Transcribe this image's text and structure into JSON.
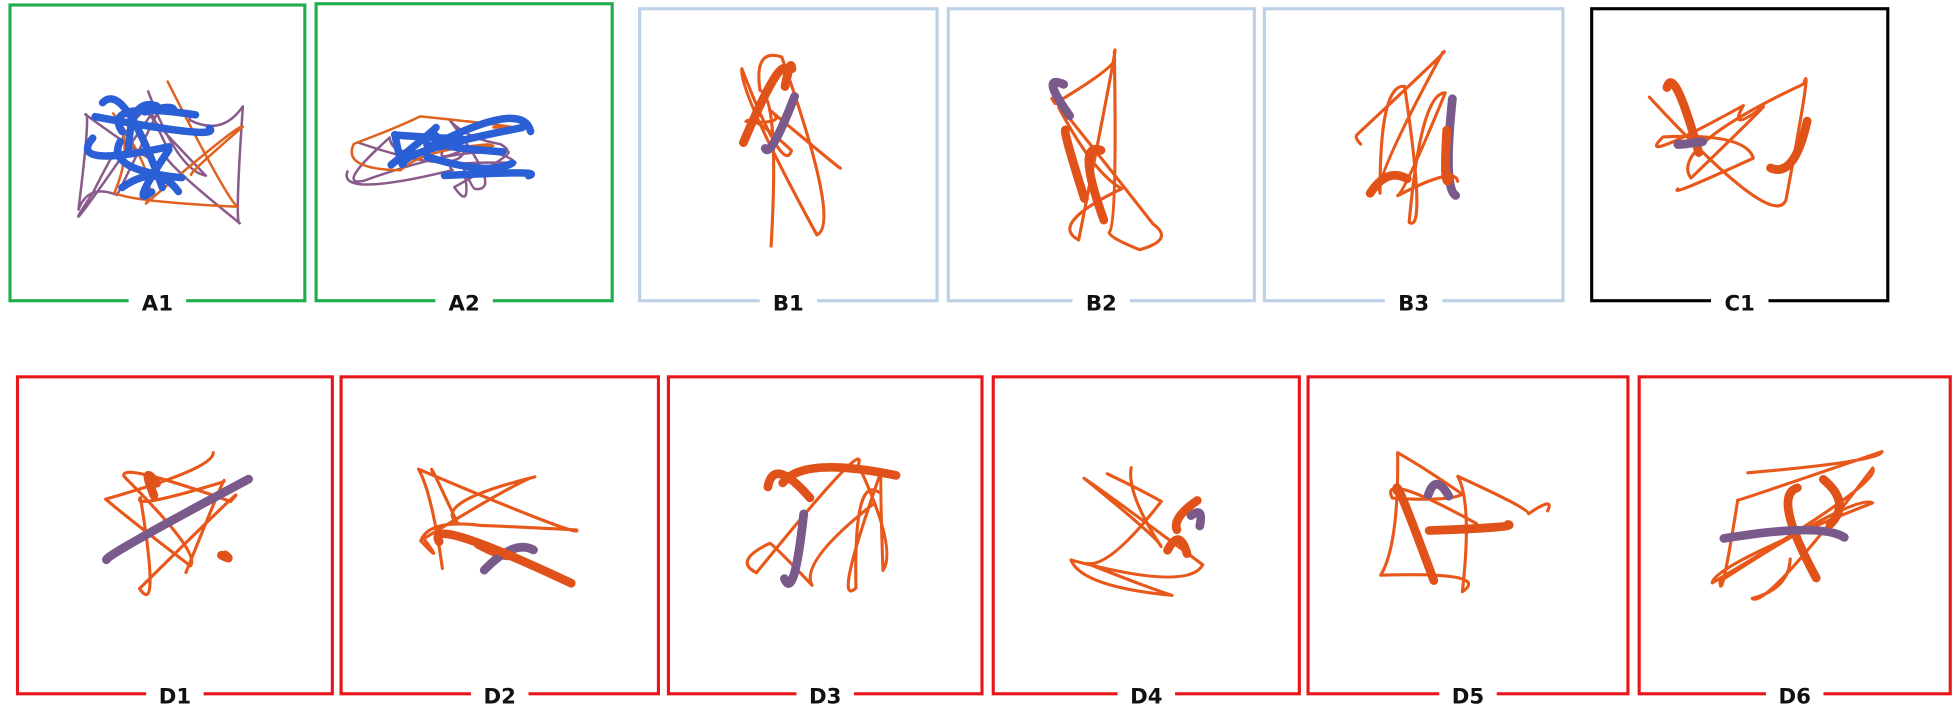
{
  "panels": [
    {
      "label": "A1"
    },
    {
      "label": "A2"
    },
    {
      "label": "B1"
    },
    {
      "label": "B2"
    },
    {
      "label": "B3"
    },
    {
      "label": "C1"
    },
    {
      "label": "D1"
    },
    {
      "label": "D2"
    },
    {
      "label": "D3"
    },
    {
      "label": "D4"
    },
    {
      "label": "D5"
    },
    {
      "label": "D6"
    }
  ]
}
